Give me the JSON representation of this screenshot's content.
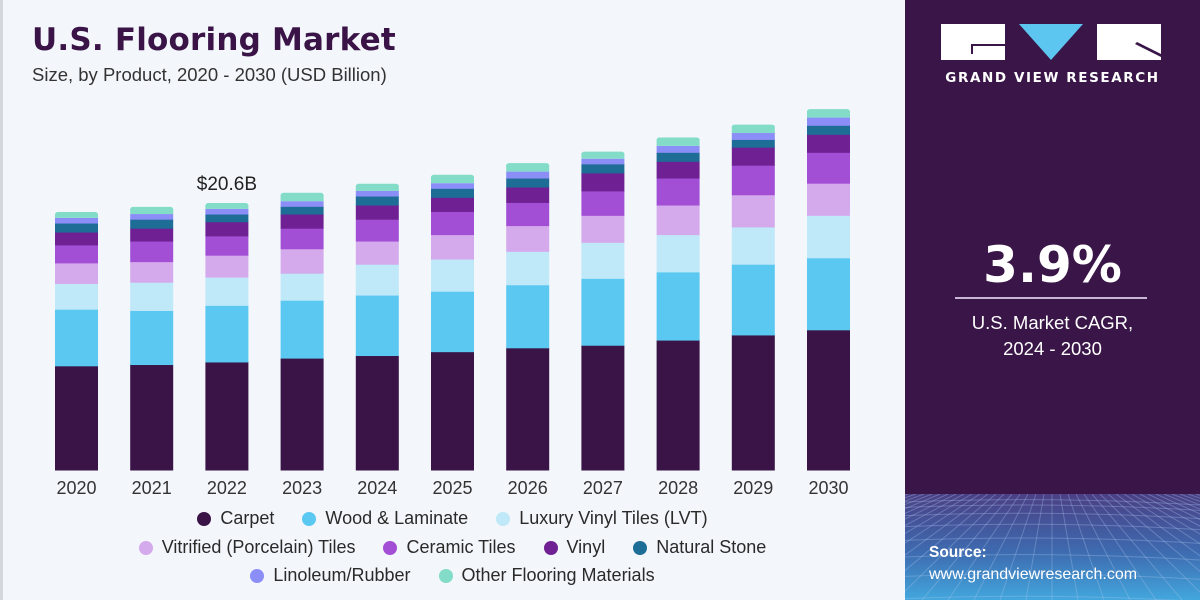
{
  "header": {
    "title": "U.S. Flooring Market",
    "subtitle": "Size, by Product, 2020 - 2030 (USD Billion)"
  },
  "side_panel": {
    "brand": "GRAND VIEW RESEARCH",
    "cagr_value": "3.9%",
    "cagr_label_line1": "U.S. Market CAGR,",
    "cagr_label_line2": "2024 - 2030",
    "source_label": "Source:",
    "source_url": "www.grandviewresearch.com",
    "colors": {
      "panel_bg": "#3a1548",
      "logo_accent": "#5cc6f1"
    }
  },
  "chart_data": {
    "type": "bar",
    "stacked": true,
    "title": "U.S. Flooring Market",
    "subtitle": "Size, by Product, 2020 - 2030 (USD Billion)",
    "xlabel": "",
    "ylabel": "",
    "ylim": [
      0,
      29
    ],
    "grid": false,
    "legend_position": "bottom",
    "categories": [
      "2020",
      "2021",
      "2022",
      "2023",
      "2024",
      "2025",
      "2026",
      "2027",
      "2028",
      "2029",
      "2030"
    ],
    "annotations": [
      {
        "category": "2022",
        "text": "$20.6B"
      }
    ],
    "series": [
      {
        "name": "Carpet",
        "color": "#3a1347",
        "values": [
          8.1,
          8.2,
          8.4,
          8.7,
          8.9,
          9.2,
          9.5,
          9.7,
          10.1,
          10.5,
          10.9
        ]
      },
      {
        "name": "Wood & Laminate",
        "color": "#5bc8f2",
        "values": [
          4.4,
          4.2,
          4.4,
          4.5,
          4.7,
          4.7,
          4.9,
          5.2,
          5.3,
          5.5,
          5.6
        ]
      },
      {
        "name": "Luxury Vinyl Tiles (LVT)",
        "color": "#bfe8f8",
        "values": [
          2.0,
          2.2,
          2.2,
          2.1,
          2.4,
          2.5,
          2.6,
          2.8,
          2.9,
          2.9,
          3.3
        ]
      },
      {
        "name": "Vitrified (Porcelain) Tiles",
        "color": "#d5aaec",
        "values": [
          1.6,
          1.6,
          1.7,
          1.9,
          1.8,
          1.9,
          2.0,
          2.1,
          2.3,
          2.5,
          2.5
        ]
      },
      {
        "name": "Ceramic Tiles",
        "color": "#a24fd6",
        "values": [
          1.4,
          1.6,
          1.5,
          1.6,
          1.7,
          1.8,
          1.8,
          1.9,
          2.1,
          2.3,
          2.4
        ]
      },
      {
        "name": "Vinyl",
        "color": "#6f2194",
        "values": [
          1.0,
          1.0,
          1.1,
          1.1,
          1.1,
          1.1,
          1.2,
          1.4,
          1.3,
          1.4,
          1.4
        ]
      },
      {
        "name": "Natural Stone",
        "color": "#1e6d97",
        "values": [
          0.7,
          0.7,
          0.6,
          0.6,
          0.7,
          0.7,
          0.7,
          0.7,
          0.7,
          0.6,
          0.7
        ]
      },
      {
        "name": "Linoleum/Rubber",
        "color": "#8c8ef8",
        "values": [
          0.4,
          0.4,
          0.4,
          0.4,
          0.4,
          0.4,
          0.5,
          0.4,
          0.5,
          0.5,
          0.6
        ]
      },
      {
        "name": "Other Flooring Materials",
        "color": "#82dcc8",
        "values": [
          0.3,
          0.4,
          0.3,
          0.5,
          0.4,
          0.5,
          0.5,
          0.4,
          0.5,
          0.5,
          0.5
        ]
      }
    ]
  }
}
